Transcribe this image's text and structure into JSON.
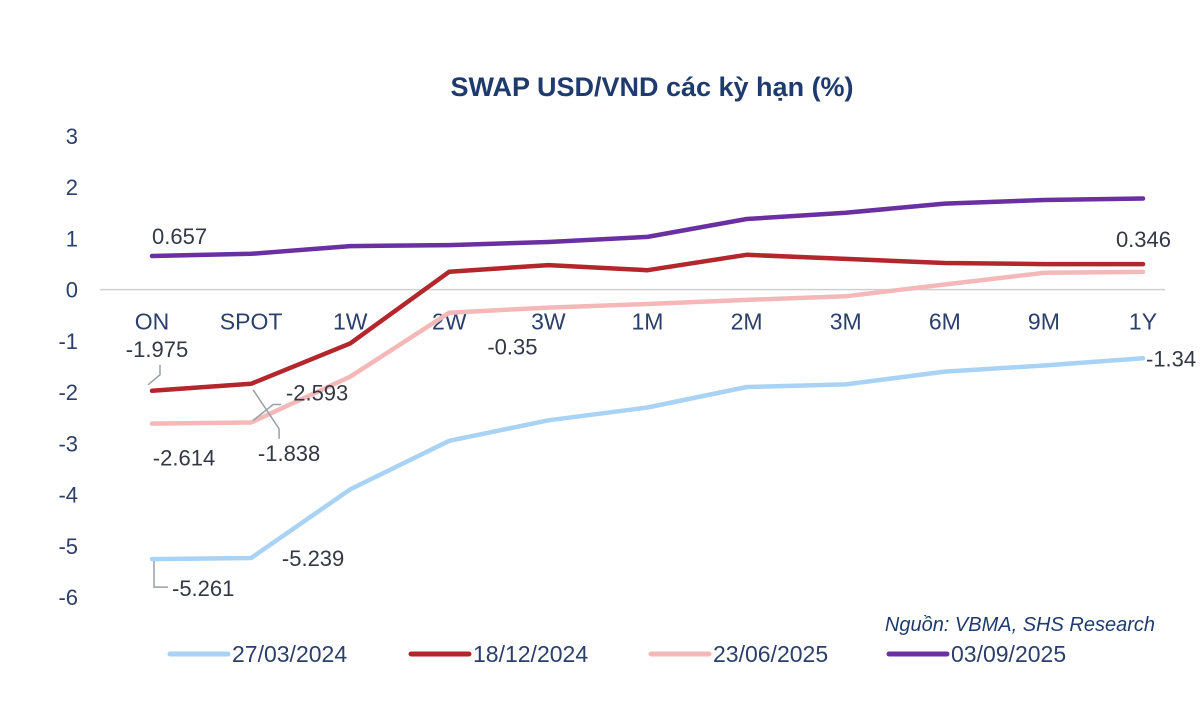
{
  "chart_data": {
    "type": "line",
    "title": "SWAP USD/VND các kỳ hạn (%)",
    "xlabel": "",
    "ylabel": "",
    "ylim": [
      -6,
      3
    ],
    "yticks": [
      3,
      2,
      1,
      0,
      -1,
      -2,
      -3,
      -4,
      -5,
      -6
    ],
    "grid": false,
    "legend": "bottom",
    "categories": [
      "ON",
      "SPOT",
      "1W",
      "2W",
      "3W",
      "1M",
      "2M",
      "3M",
      "6M",
      "9M",
      "1Y"
    ],
    "series": [
      {
        "name": "27/03/2024",
        "color": "#a9d3f5",
        "values": [
          -5.261,
          -5.239,
          -3.9,
          -2.95,
          -2.55,
          -2.3,
          -1.9,
          -1.85,
          -1.6,
          -1.48,
          -1.34
        ]
      },
      {
        "name": "18/12/2024",
        "color": "#b2262c",
        "values": [
          -1.975,
          -1.838,
          -1.05,
          0.35,
          0.48,
          0.38,
          0.68,
          0.6,
          0.52,
          0.5,
          0.5
        ]
      },
      {
        "name": "23/06/2025",
        "color": "#f4b8b8",
        "values": [
          -2.614,
          -2.593,
          -1.7,
          -0.45,
          -0.35,
          -0.28,
          -0.2,
          -0.13,
          0.1,
          0.33,
          0.346
        ]
      },
      {
        "name": "03/09/2025",
        "color": "#6a2fa0",
        "values": [
          0.657,
          0.7,
          0.85,
          0.87,
          0.93,
          1.03,
          1.38,
          1.5,
          1.68,
          1.75,
          1.78
        ]
      }
    ],
    "annotations": [
      {
        "text": "0.657",
        "series": "03/09/2025",
        "category": "ON"
      },
      {
        "text": "0.346",
        "series": "23/06/2025",
        "category": "1Y"
      },
      {
        "text": "-1.975",
        "series": "18/12/2024",
        "category": "ON"
      },
      {
        "text": "-2.593",
        "series": "23/06/2025",
        "category": "SPOT"
      },
      {
        "text": "-2.614",
        "series": "23/06/2025",
        "category": "ON"
      },
      {
        "text": "-1.838",
        "series": "18/12/2024",
        "category": "SPOT"
      },
      {
        "text": "-0.35",
        "series": "23/06/2025",
        "category": "3W"
      },
      {
        "text": "-5.239",
        "series": "27/03/2024",
        "category": "SPOT"
      },
      {
        "text": "-5.261",
        "series": "27/03/2024",
        "category": "ON"
      },
      {
        "text": "-1.34",
        "series": "27/03/2024",
        "category": "1Y"
      }
    ],
    "source": "Nguồn: VBMA, SHS Research"
  }
}
